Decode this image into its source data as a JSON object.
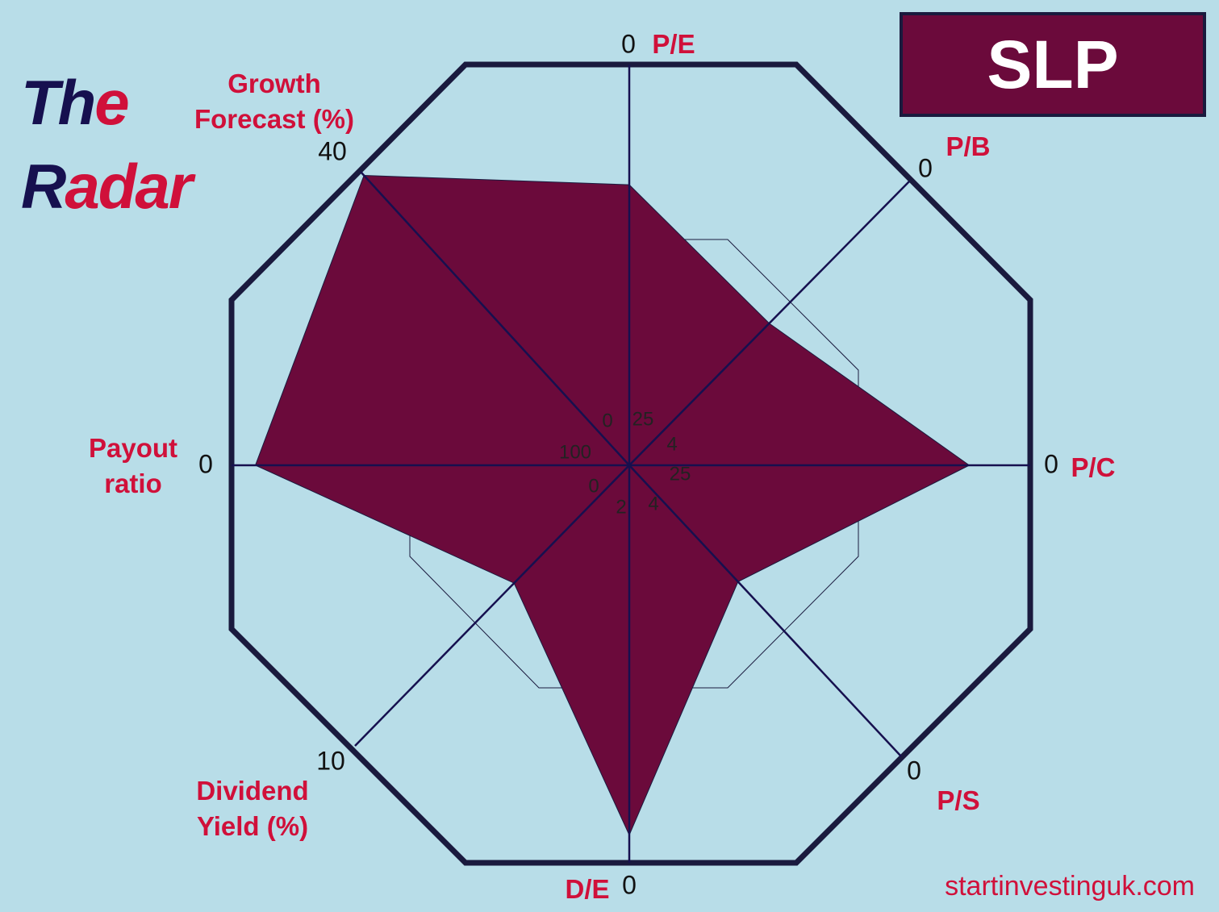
{
  "title": [
    [
      "Th",
      "e"
    ],
    [
      "R",
      "adar"
    ]
  ],
  "ticker": "SLP",
  "website": "startinvestinguk.com",
  "chart_data": {
    "type": "radar",
    "categories": [
      "P/E",
      "P/B",
      "P/C",
      "P/S",
      "D/E",
      "Dividend Yield (%)",
      "Payout ratio",
      "Growth Forecast (%)"
    ],
    "ranges": [
      [
        25,
        0
      ],
      [
        4,
        0
      ],
      [
        25,
        0
      ],
      [
        4,
        0
      ],
      [
        2,
        0
      ],
      [
        0,
        10
      ],
      [
        100,
        0
      ],
      [
        0,
        40
      ]
    ],
    "values": [
      7.5,
      2.0,
      3.8,
      2.4,
      0.14,
      4.2,
      6,
      39.5
    ],
    "color": "#6b0a3b"
  }
}
